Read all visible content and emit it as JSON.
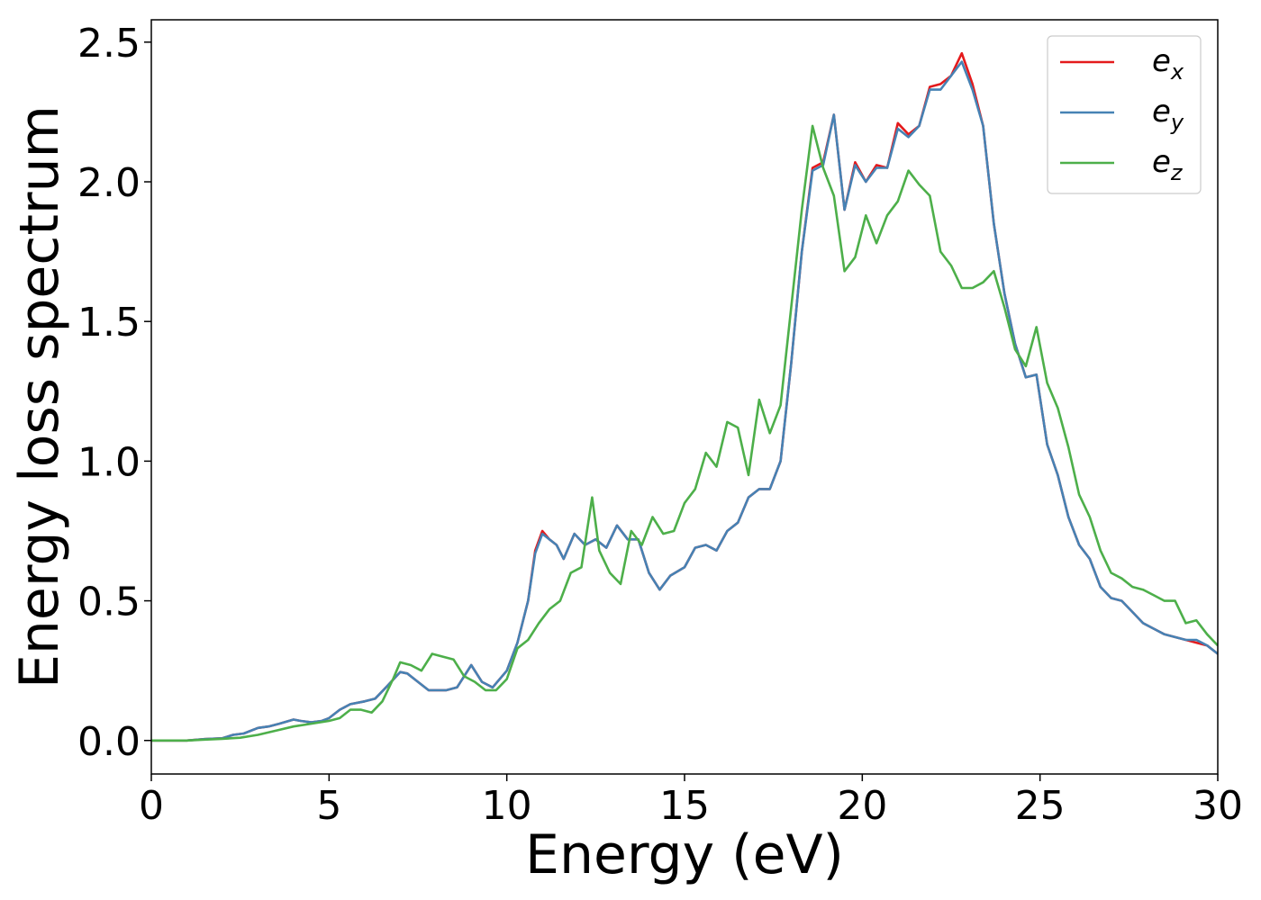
{
  "chart_data": {
    "type": "line",
    "title": "",
    "xlabel": "Energy (eV)",
    "ylabel": "Energy loss spectrum",
    "xlim": [
      0,
      30
    ],
    "ylim": [
      -0.12,
      2.58
    ],
    "xticks": [
      0,
      5,
      10,
      15,
      20,
      25,
      30
    ],
    "xtick_labels": [
      "0",
      "5",
      "10",
      "15",
      "20",
      "25",
      "30"
    ],
    "yticks": [
      0.0,
      0.5,
      1.0,
      1.5,
      2.0,
      2.5
    ],
    "ytick_labels": [
      "0.0",
      "0.5",
      "1.0",
      "1.5",
      "2.0",
      "2.5"
    ],
    "grid": false,
    "legend_position": "top-right",
    "series": [
      {
        "name": "e_x",
        "label_base": "e",
        "label_sub": "x",
        "color": "#e41a1c",
        "x": [
          0,
          1,
          1.5,
          2,
          2.3,
          2.6,
          3,
          3.3,
          3.6,
          4,
          4.2,
          4.5,
          4.8,
          5,
          5.3,
          5.6,
          6,
          6.3,
          6.6,
          7,
          7.2,
          7.5,
          7.8,
          8,
          8.3,
          8.6,
          9,
          9.3,
          9.6,
          10,
          10.3,
          10.6,
          10.8,
          11,
          11.2,
          11.4,
          11.6,
          11.9,
          12.2,
          12.5,
          12.8,
          13.1,
          13.4,
          13.7,
          14,
          14.3,
          14.6,
          15,
          15.3,
          15.6,
          15.9,
          16.2,
          16.5,
          16.8,
          17.1,
          17.4,
          17.7,
          18,
          18.3,
          18.6,
          18.9,
          19.2,
          19.5,
          19.8,
          20.1,
          20.4,
          20.7,
          21,
          21.3,
          21.6,
          21.9,
          22.2,
          22.5,
          22.8,
          23.1,
          23.4,
          23.7,
          24,
          24.3,
          24.6,
          24.9,
          25.2,
          25.5,
          25.8,
          26.1,
          26.4,
          26.7,
          27,
          27.3,
          27.6,
          27.9,
          28.2,
          28.5,
          28.8,
          29.1,
          29.4,
          29.7,
          30
        ],
        "y": [
          0,
          0,
          0.005,
          0.008,
          0.02,
          0.025,
          0.045,
          0.05,
          0.06,
          0.075,
          0.07,
          0.065,
          0.07,
          0.08,
          0.11,
          0.13,
          0.14,
          0.15,
          0.19,
          0.245,
          0.24,
          0.21,
          0.18,
          0.18,
          0.18,
          0.19,
          0.27,
          0.21,
          0.19,
          0.25,
          0.35,
          0.5,
          0.68,
          0.75,
          0.72,
          0.7,
          0.65,
          0.74,
          0.7,
          0.72,
          0.69,
          0.77,
          0.72,
          0.72,
          0.6,
          0.54,
          0.59,
          0.62,
          0.69,
          0.7,
          0.68,
          0.75,
          0.78,
          0.87,
          0.9,
          0.9,
          1.0,
          1.35,
          1.75,
          2.05,
          2.07,
          2.24,
          1.9,
          2.07,
          2.0,
          2.06,
          2.05,
          2.21,
          2.17,
          2.2,
          2.34,
          2.35,
          2.38,
          2.46,
          2.35,
          2.2,
          1.85,
          1.6,
          1.42,
          1.3,
          1.31,
          1.06,
          0.95,
          0.8,
          0.7,
          0.65,
          0.55,
          0.51,
          0.5,
          0.46,
          0.42,
          0.4,
          0.38,
          0.37,
          0.36,
          0.35,
          0.34,
          0.31
        ]
      },
      {
        "name": "e_y",
        "label_base": "e",
        "label_sub": "y",
        "color": "#4682b4",
        "x": [
          0,
          1,
          1.5,
          2,
          2.3,
          2.6,
          3,
          3.3,
          3.6,
          4,
          4.2,
          4.5,
          4.8,
          5,
          5.3,
          5.6,
          6,
          6.3,
          6.6,
          7,
          7.2,
          7.5,
          7.8,
          8,
          8.3,
          8.6,
          9,
          9.3,
          9.6,
          10,
          10.3,
          10.6,
          10.8,
          11,
          11.2,
          11.4,
          11.6,
          11.9,
          12.2,
          12.5,
          12.8,
          13.1,
          13.4,
          13.7,
          14,
          14.3,
          14.6,
          15,
          15.3,
          15.6,
          15.9,
          16.2,
          16.5,
          16.8,
          17.1,
          17.4,
          17.7,
          18,
          18.3,
          18.6,
          18.9,
          19.2,
          19.5,
          19.8,
          20.1,
          20.4,
          20.7,
          21,
          21.3,
          21.6,
          21.9,
          22.2,
          22.5,
          22.8,
          23.1,
          23.4,
          23.7,
          24,
          24.3,
          24.6,
          24.9,
          25.2,
          25.5,
          25.8,
          26.1,
          26.4,
          26.7,
          27,
          27.3,
          27.6,
          27.9,
          28.2,
          28.5,
          28.8,
          29.1,
          29.4,
          29.7,
          30
        ],
        "y": [
          0,
          0,
          0.005,
          0.008,
          0.02,
          0.025,
          0.045,
          0.05,
          0.06,
          0.075,
          0.07,
          0.065,
          0.07,
          0.08,
          0.11,
          0.13,
          0.14,
          0.15,
          0.19,
          0.245,
          0.24,
          0.21,
          0.18,
          0.18,
          0.18,
          0.19,
          0.27,
          0.21,
          0.19,
          0.25,
          0.35,
          0.5,
          0.67,
          0.74,
          0.72,
          0.7,
          0.65,
          0.74,
          0.7,
          0.72,
          0.69,
          0.77,
          0.72,
          0.72,
          0.6,
          0.54,
          0.59,
          0.62,
          0.69,
          0.7,
          0.68,
          0.75,
          0.78,
          0.87,
          0.9,
          0.9,
          1.0,
          1.35,
          1.75,
          2.04,
          2.06,
          2.24,
          1.9,
          2.06,
          2.0,
          2.05,
          2.05,
          2.19,
          2.16,
          2.2,
          2.33,
          2.33,
          2.38,
          2.43,
          2.33,
          2.2,
          1.85,
          1.6,
          1.42,
          1.3,
          1.31,
          1.06,
          0.95,
          0.8,
          0.7,
          0.65,
          0.55,
          0.51,
          0.5,
          0.46,
          0.42,
          0.4,
          0.38,
          0.37,
          0.36,
          0.36,
          0.34,
          0.31
        ]
      },
      {
        "name": "e_z",
        "label_base": "e",
        "label_sub": "z",
        "color": "#4daf4a",
        "x": [
          0,
          1,
          1.5,
          2,
          2.5,
          3,
          3.5,
          4,
          4.5,
          5,
          5.3,
          5.6,
          5.9,
          6.2,
          6.5,
          6.8,
          7,
          7.3,
          7.6,
          7.9,
          8.2,
          8.5,
          8.8,
          9.1,
          9.4,
          9.7,
          10,
          10.3,
          10.6,
          10.9,
          11.2,
          11.5,
          11.8,
          12.1,
          12.4,
          12.6,
          12.9,
          13.2,
          13.5,
          13.8,
          14.1,
          14.4,
          14.7,
          15,
          15.3,
          15.6,
          15.9,
          16.2,
          16.5,
          16.8,
          17.1,
          17.4,
          17.7,
          18,
          18.3,
          18.6,
          18.9,
          19.2,
          19.5,
          19.8,
          20.1,
          20.4,
          20.7,
          21,
          21.3,
          21.6,
          21.9,
          22.2,
          22.5,
          22.8,
          23.1,
          23.4,
          23.7,
          24,
          24.3,
          24.6,
          24.9,
          25.2,
          25.5,
          25.8,
          26.1,
          26.4,
          26.7,
          27,
          27.3,
          27.6,
          27.9,
          28.2,
          28.5,
          28.8,
          29.1,
          29.4,
          29.7,
          30
        ],
        "y": [
          0,
          0,
          0.003,
          0.006,
          0.01,
          0.02,
          0.035,
          0.05,
          0.06,
          0.07,
          0.08,
          0.11,
          0.11,
          0.1,
          0.14,
          0.22,
          0.28,
          0.27,
          0.25,
          0.31,
          0.3,
          0.29,
          0.23,
          0.21,
          0.18,
          0.18,
          0.22,
          0.33,
          0.36,
          0.42,
          0.47,
          0.5,
          0.6,
          0.62,
          0.87,
          0.68,
          0.6,
          0.56,
          0.75,
          0.7,
          0.8,
          0.74,
          0.75,
          0.85,
          0.9,
          1.03,
          0.98,
          1.14,
          1.12,
          0.95,
          1.22,
          1.1,
          1.2,
          1.55,
          1.9,
          2.2,
          2.05,
          1.95,
          1.68,
          1.73,
          1.88,
          1.78,
          1.88,
          1.93,
          2.04,
          1.99,
          1.95,
          1.75,
          1.7,
          1.62,
          1.62,
          1.64,
          1.68,
          1.55,
          1.4,
          1.34,
          1.48,
          1.28,
          1.19,
          1.05,
          0.88,
          0.8,
          0.68,
          0.6,
          0.58,
          0.55,
          0.54,
          0.52,
          0.5,
          0.5,
          0.42,
          0.43,
          0.38,
          0.34
        ]
      }
    ]
  }
}
